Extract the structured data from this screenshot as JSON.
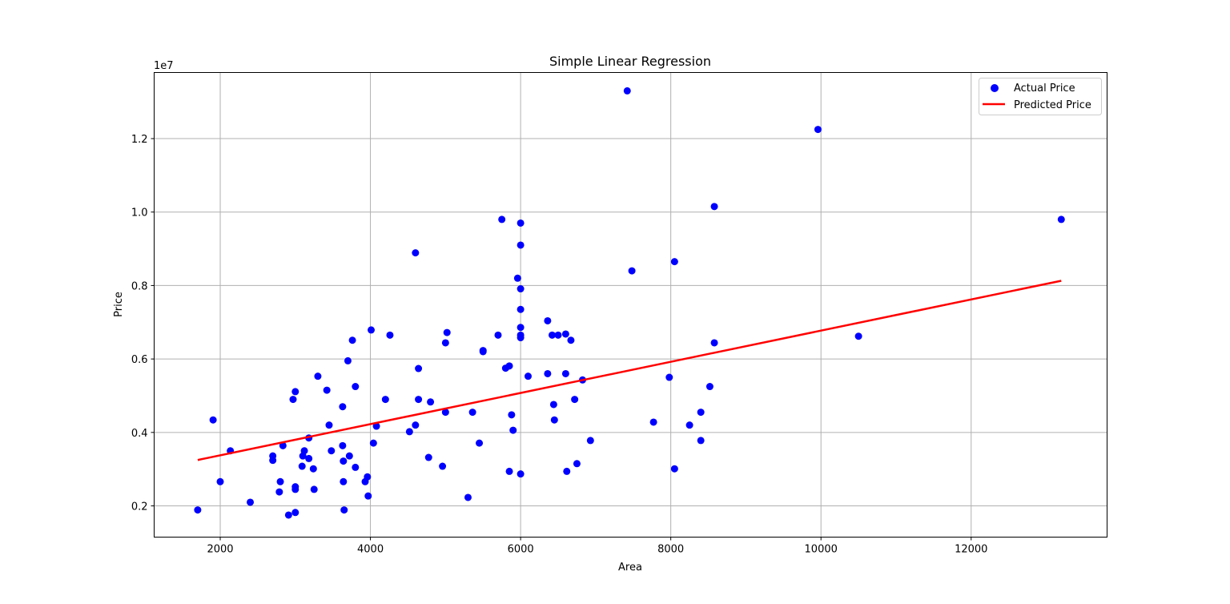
{
  "chart_data": {
    "type": "scatter",
    "title": "Simple Linear Regression",
    "xlabel": "Area",
    "ylabel": "Price",
    "y_offset_text": "1e7",
    "xlim": [
      1120,
      13810
    ],
    "ylim": [
      1150000,
      13800000
    ],
    "xticks": [
      2000,
      4000,
      6000,
      8000,
      10000,
      12000
    ],
    "xtick_labels": [
      "2000",
      "4000",
      "6000",
      "8000",
      "10000",
      "12000"
    ],
    "yticks": [
      2000000,
      4000000,
      6000000,
      8000000,
      10000000,
      12000000
    ],
    "ytick_labels": [
      "0.2",
      "0.4",
      "0.6",
      "0.8",
      "1.0",
      "1.2"
    ],
    "grid": true,
    "legend_position": "top-right",
    "colors": {
      "points": "#0000ff",
      "line": "#ff0000",
      "grid": "#b0b0b0"
    },
    "series": [
      {
        "name": "Actual Price",
        "kind": "scatter",
        "points": [
          [
            1700,
            1890000
          ],
          [
            1905,
            4340000
          ],
          [
            2000,
            2660000
          ],
          [
            2135,
            3500000
          ],
          [
            2400,
            2100000
          ],
          [
            2700,
            3240000
          ],
          [
            2700,
            3360000
          ],
          [
            2787,
            2380000
          ],
          [
            2800,
            2660000
          ],
          [
            2835,
            3640000
          ],
          [
            2910,
            1750000
          ],
          [
            2970,
            4900000
          ],
          [
            3000,
            5110000
          ],
          [
            3000,
            2520000
          ],
          [
            3000,
            2450000
          ],
          [
            3000,
            1820000
          ],
          [
            3090,
            3080000
          ],
          [
            3100,
            3360000
          ],
          [
            3120,
            3500000
          ],
          [
            3180,
            3850000
          ],
          [
            3180,
            3290000
          ],
          [
            3240,
            3010000
          ],
          [
            3250,
            2450000
          ],
          [
            3300,
            5530000
          ],
          [
            3420,
            5150000
          ],
          [
            3450,
            4200000
          ],
          [
            3480,
            3500000
          ],
          [
            3630,
            4700000
          ],
          [
            3630,
            3640000
          ],
          [
            3640,
            3220000
          ],
          [
            3640,
            2660000
          ],
          [
            3650,
            1890000
          ],
          [
            3700,
            5950000
          ],
          [
            3720,
            3360000
          ],
          [
            3760,
            6510000
          ],
          [
            3800,
            5250000
          ],
          [
            3800,
            3050000
          ],
          [
            3930,
            2660000
          ],
          [
            3960,
            2790000
          ],
          [
            3970,
            2270000
          ],
          [
            4010,
            6790000
          ],
          [
            4040,
            3710000
          ],
          [
            4080,
            4170000
          ],
          [
            4200,
            4900000
          ],
          [
            4260,
            6650000
          ],
          [
            4520,
            4020000
          ],
          [
            4600,
            8890000
          ],
          [
            4600,
            4200000
          ],
          [
            4640,
            5740000
          ],
          [
            4640,
            4900000
          ],
          [
            4775,
            3320000
          ],
          [
            4800,
            4830000
          ],
          [
            4960,
            3080000
          ],
          [
            5000,
            6440000
          ],
          [
            5000,
            4550000
          ],
          [
            5020,
            6720000
          ],
          [
            5300,
            2230000
          ],
          [
            5360,
            4550000
          ],
          [
            5450,
            3710000
          ],
          [
            5500,
            6230000
          ],
          [
            5500,
            6200000
          ],
          [
            5700,
            6650000
          ],
          [
            5750,
            9800000
          ],
          [
            5800,
            5750000
          ],
          [
            5850,
            5810000
          ],
          [
            5850,
            2940000
          ],
          [
            5880,
            4480000
          ],
          [
            5900,
            4060000
          ],
          [
            5960,
            8200000
          ],
          [
            6000,
            9700000
          ],
          [
            6000,
            9100000
          ],
          [
            6000,
            7910000
          ],
          [
            6000,
            7350000
          ],
          [
            6000,
            6860000
          ],
          [
            6000,
            6650000
          ],
          [
            6000,
            6580000
          ],
          [
            6000,
            2870000
          ],
          [
            6100,
            5530000
          ],
          [
            6360,
            7040000
          ],
          [
            6360,
            5600000
          ],
          [
            6420,
            6650000
          ],
          [
            6440,
            4760000
          ],
          [
            6450,
            4340000
          ],
          [
            6500,
            6650000
          ],
          [
            6600,
            6680000
          ],
          [
            6600,
            5600000
          ],
          [
            6615,
            2940000
          ],
          [
            6670,
            6510000
          ],
          [
            6720,
            4900000
          ],
          [
            6750,
            3150000
          ],
          [
            6825,
            5430000
          ],
          [
            6930,
            3780000
          ],
          [
            7420,
            13300000
          ],
          [
            7482,
            8400000
          ],
          [
            7770,
            4280000
          ],
          [
            7980,
            5500000
          ],
          [
            8050,
            8650000
          ],
          [
            8050,
            3010000
          ],
          [
            8250,
            4200000
          ],
          [
            8400,
            4550000
          ],
          [
            8400,
            3780000
          ],
          [
            8520,
            5250000
          ],
          [
            8580,
            10150000
          ],
          [
            8580,
            6440000
          ],
          [
            9960,
            12250000
          ],
          [
            10500,
            6620000
          ],
          [
            13200,
            9800000
          ]
        ]
      },
      {
        "name": "Predicted Price",
        "kind": "line",
        "points": [
          [
            1700,
            3250000
          ],
          [
            13200,
            8130000
          ]
        ]
      }
    ]
  }
}
